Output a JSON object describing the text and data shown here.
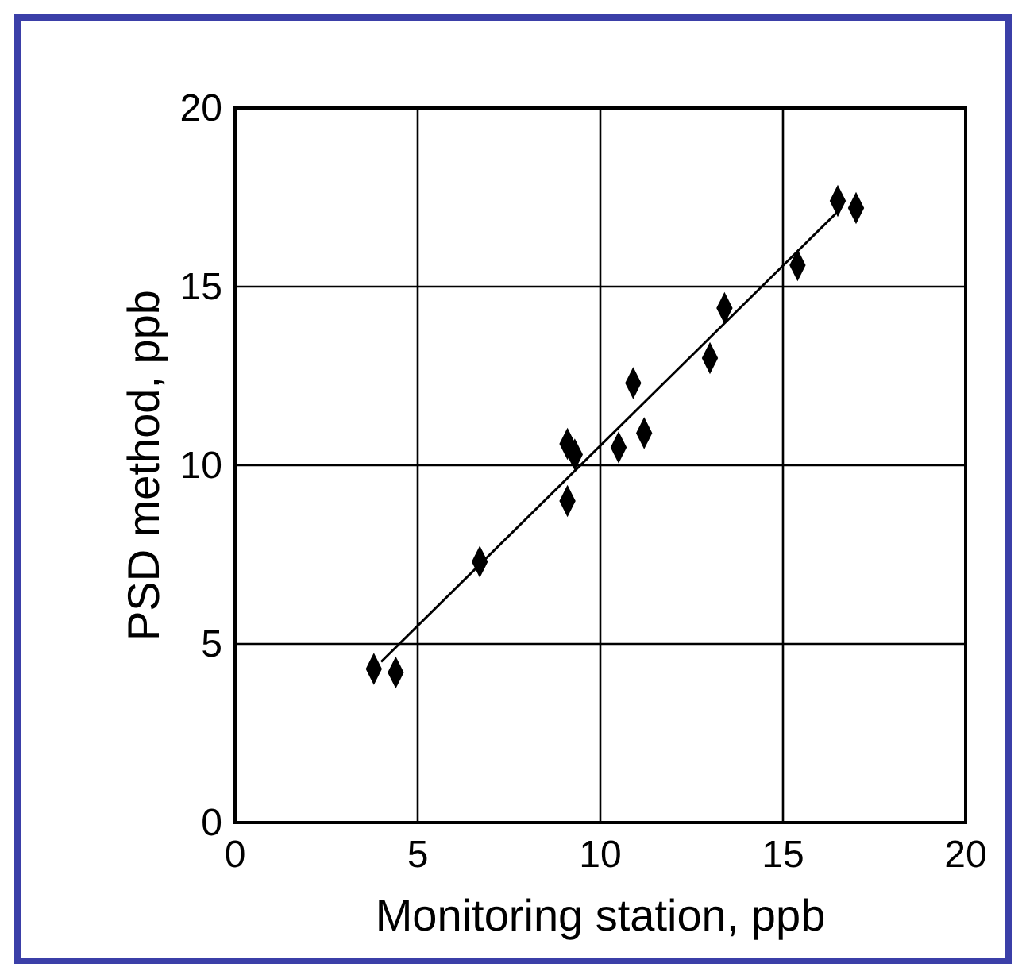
{
  "chart_data": {
    "type": "scatter",
    "xlabel": "Monitoring station, ppb",
    "ylabel": "PSD method, ppb",
    "xlim": [
      0,
      20
    ],
    "ylim": [
      0,
      20
    ],
    "xticks": [
      0,
      5,
      10,
      15,
      20
    ],
    "yticks": [
      0,
      5,
      10,
      15,
      20
    ],
    "grid": true,
    "marker": "diamond",
    "series": [
      {
        "color": "#000000",
        "x": [
          3.8,
          4.4,
          6.7,
          9.1,
          9.1,
          9.3,
          10.5,
          10.9,
          11.2,
          13.0,
          13.4,
          15.4,
          16.5,
          17.0
        ],
        "values": [
          4.3,
          4.2,
          7.3,
          9.0,
          10.6,
          10.3,
          10.5,
          12.3,
          10.9,
          13.0,
          14.4,
          15.6,
          17.4,
          17.2
        ]
      },
      {
        "type": "line",
        "color": "#000000",
        "marker": "none",
        "line_style": "solid",
        "x": [
          4.0,
          16.5
        ],
        "values": [
          4.5,
          17.1
        ]
      }
    ]
  }
}
